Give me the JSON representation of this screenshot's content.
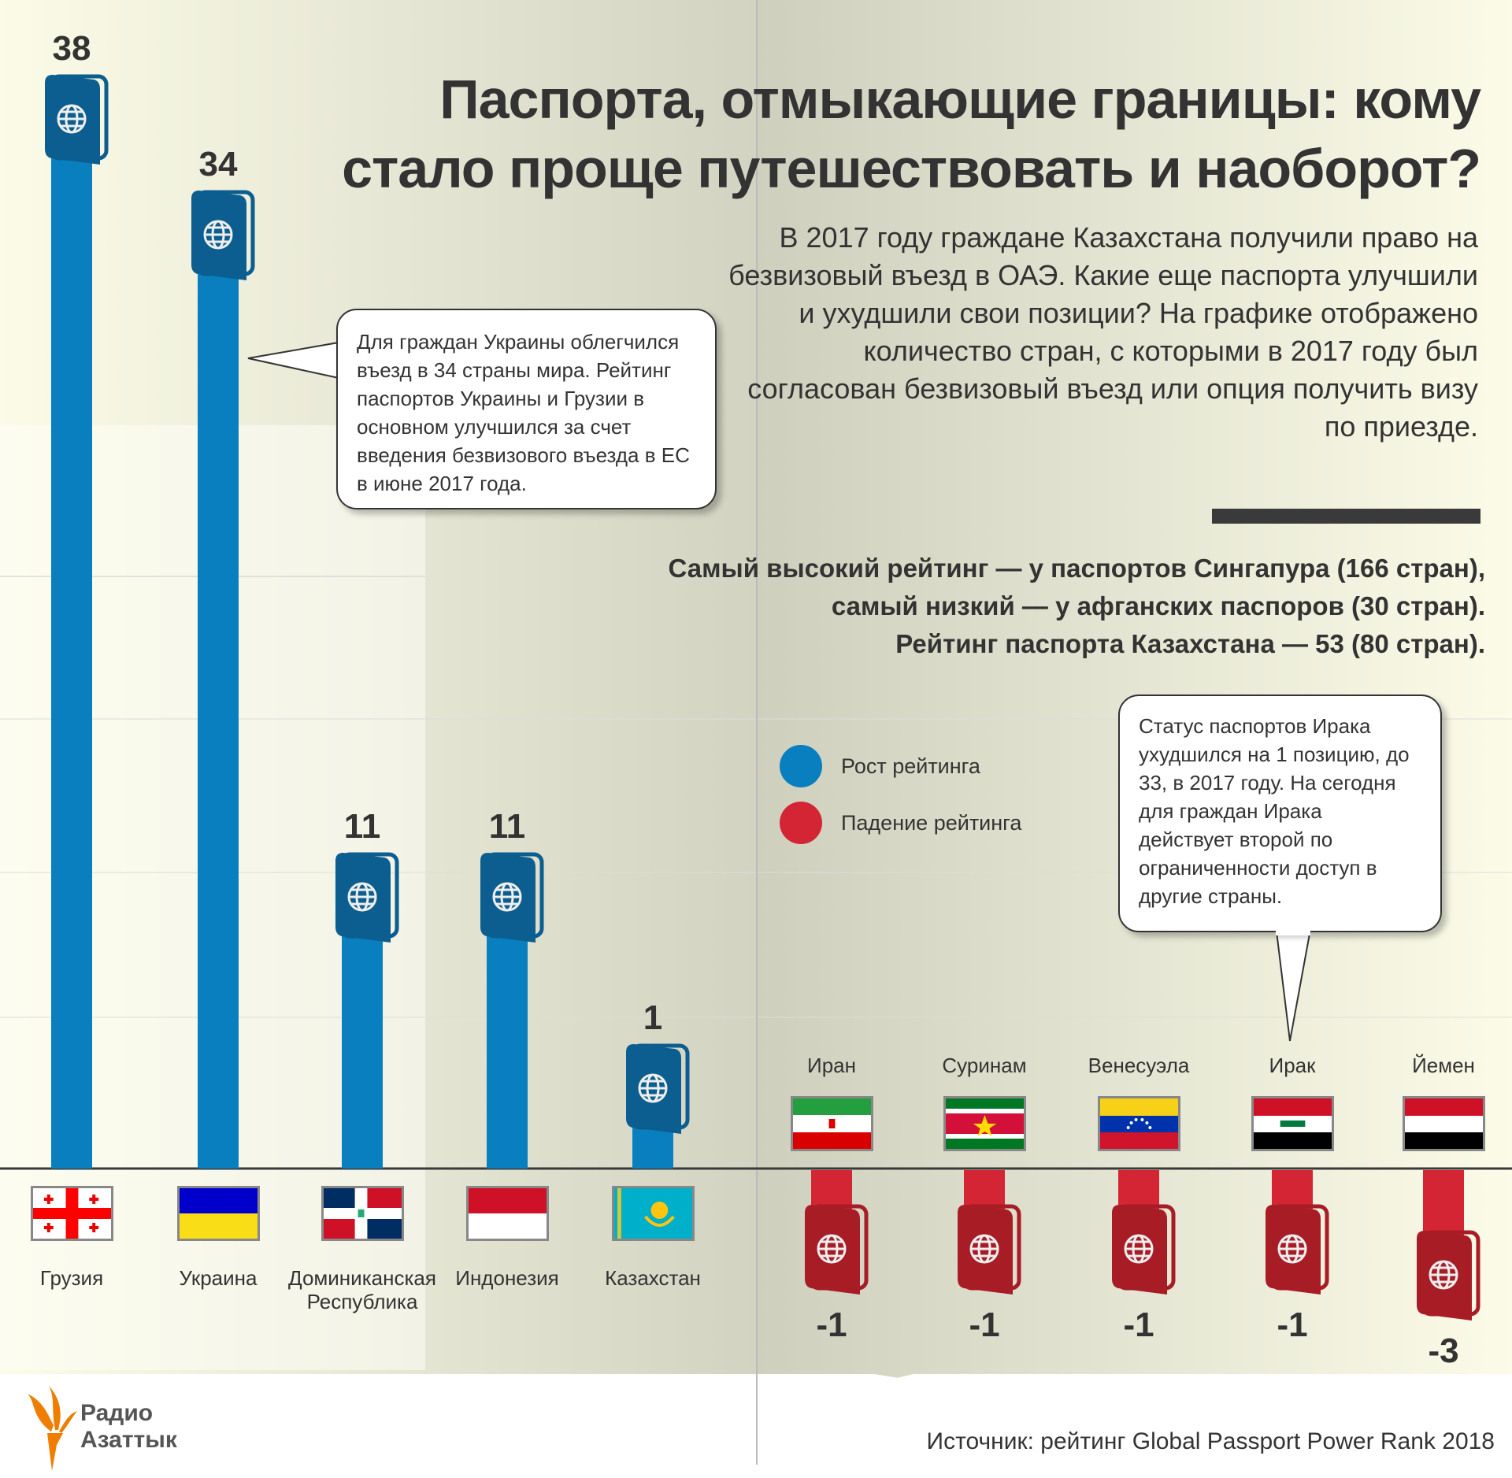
{
  "title": {
    "line1": "Паспорта, отмыкающие границы: кому",
    "line2": "стало проще путешествовать и наоборот?"
  },
  "intro": "В 2017 году граждане Казахстана получили право на безвизовый въезд в ОАЭ. Какие еще паспорта улучшили и ухудшили свои позиции? На графике отображено количество стран, с которыми в 2017 году был согласован безвизовый въезд или опция получить визу по приезде.",
  "stats": {
    "line1": "Самый высокий рейтинг — у паспортов Сингапура (166 стран),",
    "line2": "самый низкий  — у афганских паспоров (30 стран).",
    "line3": "Рейтинг паспорта Казахстана — 53 (80 стран)."
  },
  "callouts": {
    "ukraine": "Для граждан Украины облегчился въезд в 34 страны мира. Рейтинг паспортов Украины и Грузии в основном улучшился за счет введения безвизового въезда в ЕС в июне 2017 года.",
    "iraq": "Статус паспортов Ирака ухудшился на 1 позицию, до 33, в 2017 году. На сегодня для граждан Ирака действует второй по ограниченности доступ в другие страны."
  },
  "legend": [
    {
      "label": "Рост рейтинга",
      "color": "#0a7fc0"
    },
    {
      "label": "Падение рейтинга",
      "color": "#d32533"
    }
  ],
  "source": "Источник: рейтинг Global Passport Power Rank 2018",
  "logo": {
    "line1": "Радио",
    "line2": "Азаттык"
  },
  "colors": {
    "up_bar": "#0a7fc0",
    "up_passport": "#0b5e8f",
    "down_bar": "#d32533",
    "down_passport": "#a81c26"
  },
  "chart_data": {
    "type": "bar",
    "title": "Паспорта, отмыкающие границы: кому стало проще путешествовать и наоборот?",
    "series": [
      {
        "name": "Рост рейтинга",
        "categories": [
          "Грузия",
          "Украина",
          "Доминиканская Республика",
          "Индонезия",
          "Казахстан"
        ],
        "values": [
          38,
          34,
          11,
          11,
          1
        ],
        "labels": [
          "38",
          "34",
          "11",
          "11",
          "1"
        ],
        "flags": [
          "georgia",
          "ukraine",
          "dominican",
          "indonesia",
          "kazakhstan"
        ]
      },
      {
        "name": "Падение рейтинга",
        "categories": [
          "Иран",
          "Суринам",
          "Венесуэла",
          "Ирак",
          "Йемен"
        ],
        "values": [
          -1,
          -1,
          -1,
          -1,
          -3
        ],
        "labels": [
          "-1",
          "-1",
          "-1",
          "-1",
          "-3"
        ],
        "flags": [
          "iran",
          "suriname",
          "venezuela",
          "iraq",
          "yemen"
        ]
      }
    ],
    "grid": false
  }
}
